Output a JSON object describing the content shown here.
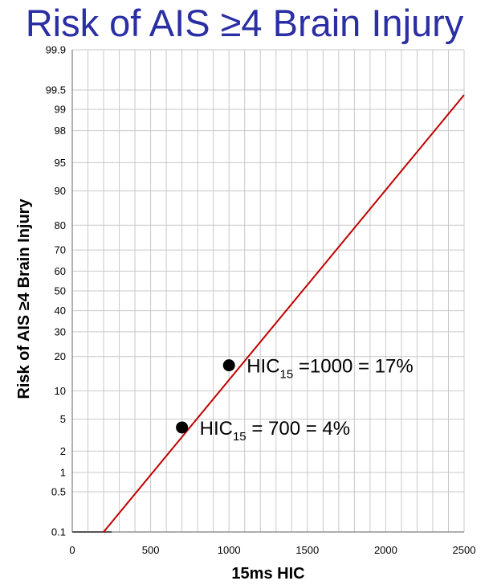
{
  "chart_data": {
    "type": "line",
    "title": "Risk of AIS ≥4 Brain Injury",
    "xlabel": "15ms HIC",
    "ylabel": "Risk of AIS ≥4 Brain Injury",
    "y_scale": "probability",
    "xlim": [
      0,
      2500
    ],
    "x_ticks": [
      0,
      500,
      1000,
      1500,
      2000,
      2500
    ],
    "y_ticks": [
      0.1,
      0.5,
      1,
      2,
      5,
      10,
      20,
      30,
      40,
      50,
      60,
      70,
      80,
      90,
      95,
      98,
      99,
      99.5,
      99.9
    ],
    "y_tick_labels": [
      "0.1",
      "0.5",
      "1",
      "2",
      "5",
      "10",
      "20",
      "30",
      "40",
      "50",
      "60",
      "70",
      "80",
      "90",
      "95",
      "98",
      "99",
      "99.5",
      "99.9"
    ],
    "grid": true,
    "line_color": "#c00000",
    "series": [
      {
        "x": [
          200,
          2500
        ],
        "y": [
          0.1,
          99.4
        ]
      }
    ],
    "points": [
      {
        "x": 700,
        "y": 4,
        "label": {
          "pre": "HIC",
          "sub": "15",
          "post": " = 700 = 4%"
        }
      },
      {
        "x": 1000,
        "y": 17,
        "label": {
          "pre": "HIC",
          "sub": "15",
          "post": " =1000 = 17%"
        }
      }
    ]
  }
}
